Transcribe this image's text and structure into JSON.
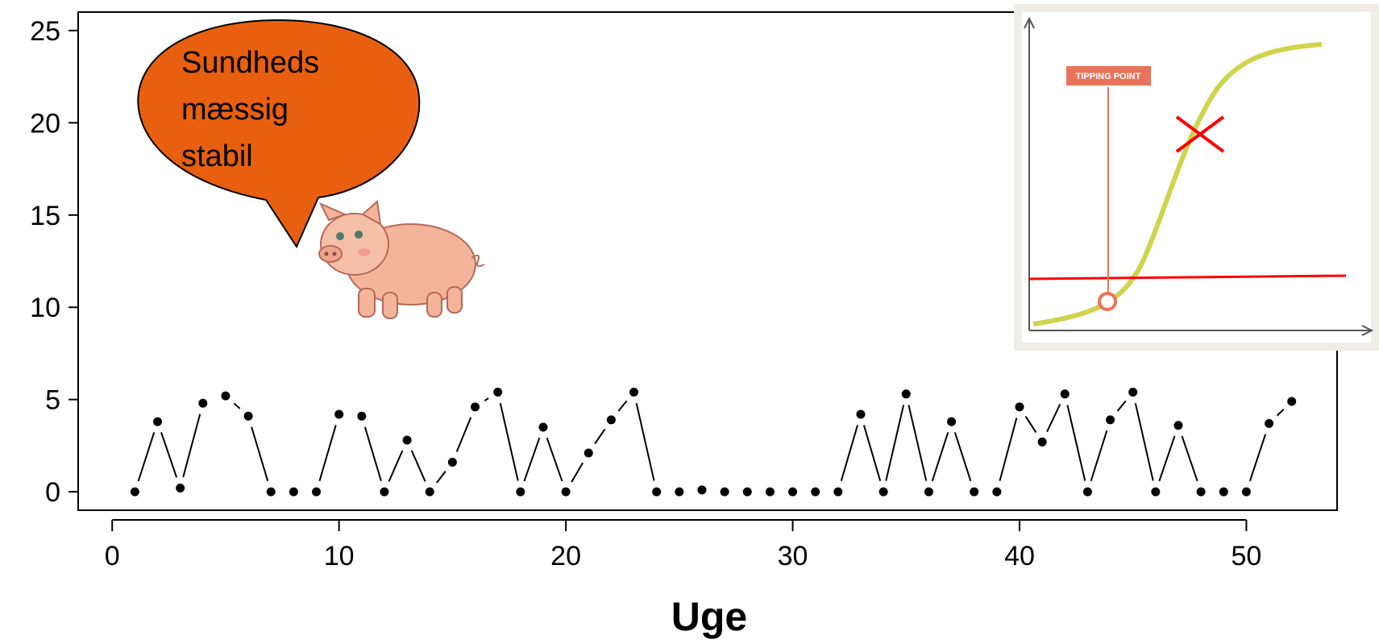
{
  "chart_data": {
    "type": "scatter",
    "xlabel": "Uge",
    "ylabel": "",
    "xlim": [
      -1.5,
      54
    ],
    "ylim": [
      -1,
      26
    ],
    "x_ticks": [
      0,
      10,
      20,
      30,
      40,
      50
    ],
    "y_ticks": [
      0,
      5,
      10,
      15,
      20,
      25
    ],
    "grid": false,
    "x": [
      1,
      2,
      3,
      4,
      5,
      6,
      7,
      8,
      9,
      10,
      11,
      12,
      13,
      14,
      15,
      16,
      17,
      18,
      19,
      20,
      21,
      22,
      23,
      24,
      25,
      26,
      27,
      28,
      29,
      30,
      31,
      32,
      33,
      34,
      35,
      36,
      37,
      38,
      39,
      40,
      41,
      42,
      43,
      44,
      45,
      46,
      47,
      48,
      49,
      50,
      51,
      52
    ],
    "y": [
      0,
      3.8,
      0.2,
      4.8,
      5.2,
      4.1,
      0,
      0,
      0,
      4.2,
      4.1,
      0,
      2.8,
      0,
      1.6,
      4.6,
      5.4,
      0,
      3.5,
      0,
      2.1,
      3.9,
      5.4,
      0,
      0,
      0.1,
      0,
      0,
      0,
      0,
      0,
      0,
      4.2,
      0,
      5.3,
      0,
      3.8,
      0,
      0,
      4.6,
      2.7,
      5.3,
      0,
      3.9,
      5.4,
      0,
      3.6,
      0,
      0,
      0,
      3.7,
      4.9
    ]
  },
  "speech_bubble": {
    "lines": [
      "Sundheds",
      "mæssig",
      "stabil"
    ],
    "fill_color": "#e8600f"
  },
  "inset": {
    "tag_label": "TIPPING POINT",
    "curve_color": "#cfd44b",
    "tag_color": "#e9735a",
    "threshold_color": "#ff0000",
    "cross_color": "#ff0000",
    "frame_color": "#efede6"
  },
  "pig_icon": "pig-icon"
}
